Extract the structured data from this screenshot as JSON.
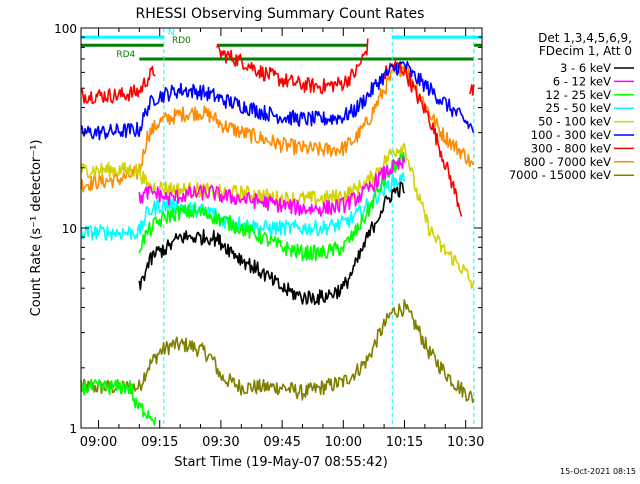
{
  "chart_data": {
    "type": "line",
    "title": "RHESSI Observing Summary Count Rates",
    "xlabel": "Start Time (19-May-07 08:55:42)",
    "ylabel": "Count Rate (s⁻¹ detector⁻¹)",
    "yscale": "log",
    "ylim": [
      1,
      100
    ],
    "xlim": [
      "08:55:42",
      "10:34:00"
    ],
    "grid": false,
    "legend_position": "right",
    "footer": "15-Oct-2021 08:15",
    "y_ticks": [
      {
        "value": 1,
        "label": "1"
      },
      {
        "value": 10,
        "label": "10"
      },
      {
        "value": 100,
        "label": "100"
      }
    ],
    "x_ticks": [
      "09:00",
      "09:15",
      "09:30",
      "09:45",
      "10:00",
      "10:15",
      "10:30"
    ],
    "legend": {
      "header": [
        "Det 1,3,4,5,6,9,",
        "FDecim 1, Att 0"
      ],
      "entries": [
        {
          "label": "3 - 6 keV",
          "color": "#000000"
        },
        {
          "label": "6 - 12 keV",
          "color": "#ff00ff"
        },
        {
          "label": "12 - 25 keV",
          "color": "#00ff00"
        },
        {
          "label": "25 - 50 keV",
          "color": "#00ffff"
        },
        {
          "label": "50 - 100 keV",
          "color": "#d2d200"
        },
        {
          "label": "100 - 300 keV",
          "color": "#0000ff"
        },
        {
          "label": "300 - 800 keV",
          "color": "#ff0000"
        },
        {
          "label": "800 - 7000 keV",
          "color": "#ff8c00"
        },
        {
          "label": "7000 - 15000 keV",
          "color": "#808000"
        }
      ]
    },
    "flags": [
      {
        "label": "N",
        "color": "#00ffff",
        "start": "08:55:42",
        "end": "09:16:00",
        "level": 90,
        "label_at": "09:17:00"
      },
      {
        "label": "N",
        "color": "#00ffff",
        "start": "10:12:00",
        "end": "10:34:00",
        "level": 90
      },
      {
        "label": "RD0",
        "color": "#008000",
        "start": "08:55:42",
        "end": "09:16:00",
        "level": 82,
        "label_at": "09:18:00"
      },
      {
        "label": "RD0",
        "color": "#008000",
        "start": "09:29:00",
        "end": "10:06:00",
        "level": 82
      },
      {
        "label": "RD0",
        "color": "#008000",
        "start": "10:32:00",
        "end": "10:34:00",
        "level": 82
      },
      {
        "label": "RD4",
        "color": "#008000",
        "start": "09:10:00",
        "end": "10:32:00",
        "level": 70,
        "label_at": "09:09:00"
      }
    ],
    "vlines": [
      {
        "color": "#00ffff",
        "time": "08:55:42"
      },
      {
        "color": "#00ffff",
        "time": "09:16:00"
      },
      {
        "color": "#00ffff",
        "time": "10:12:00"
      },
      {
        "color": "#00ffff",
        "time": "10:32:00"
      }
    ],
    "series": [
      {
        "name": "3 - 6 keV",
        "color": "#000000",
        "segments": [
          {
            "x": [
              "09:10",
              "09:12",
              "09:14",
              "09:17",
              "09:20",
              "09:25",
              "09:28",
              "09:30",
              "09:35",
              "09:40",
              "09:45",
              "09:50",
              "09:55",
              "10:00",
              "10:03",
              "10:06",
              "10:09",
              "10:12",
              "10:15"
            ],
            "y": [
              5.0,
              6.5,
              7.5,
              8.0,
              9.0,
              9.0,
              9.0,
              8.5,
              7.0,
              6.0,
              5.0,
              4.5,
              4.5,
              5.0,
              6.5,
              9.0,
              12.0,
              15.0,
              16.0
            ]
          }
        ]
      },
      {
        "name": "6 - 12 keV",
        "color": "#ff00ff",
        "segments": [
          {
            "x": [
              "09:10",
              "09:12",
              "09:14",
              "09:17",
              "09:20",
              "09:25",
              "09:28",
              "09:30",
              "09:35",
              "09:40",
              "09:45",
              "09:50",
              "09:55",
              "10:00",
              "10:03",
              "10:06",
              "10:09",
              "10:12",
              "10:15"
            ],
            "y": [
              14.0,
              15.0,
              15.0,
              14.0,
              14.5,
              15.0,
              15.0,
              14.5,
              14.0,
              13.5,
              13.0,
              12.5,
              12.5,
              13.0,
              14.0,
              15.5,
              18.0,
              20.0,
              21.0
            ]
          }
        ]
      },
      {
        "name": "12 - 25 keV",
        "color": "#00ff00",
        "segments": [
          {
            "x": [
              "09:10",
              "09:12",
              "09:14",
              "09:17",
              "09:20",
              "09:25",
              "09:28",
              "09:30",
              "09:35",
              "09:40",
              "09:45",
              "09:50",
              "09:55",
              "10:00",
              "10:03",
              "10:06",
              "10:09",
              "10:12",
              "10:15"
            ],
            "y": [
              8.0,
              9.5,
              10.5,
              11.5,
              12.0,
              12.0,
              11.5,
              11.0,
              10.0,
              9.0,
              8.0,
              7.5,
              7.5,
              8.0,
              9.5,
              12.0,
              16.0,
              20.0,
              22.0
            ]
          },
          {
            "x": [
              "08:55:42",
              "09:08",
              "09:09",
              "09:12",
              "09:14"
            ],
            "y": [
              1.6,
              1.6,
              1.3,
              1.2,
              1.1
            ]
          }
        ]
      },
      {
        "name": "25 - 50 keV",
        "color": "#00ffff",
        "segments": [
          {
            "x": [
              "08:55:42",
              "09:00",
              "09:05",
              "09:10",
              "09:12",
              "09:15",
              "09:18",
              "09:22",
              "09:28",
              "09:30",
              "09:35",
              "09:40",
              "09:45",
              "09:50",
              "09:55",
              "10:00",
              "10:03",
              "10:06",
              "10:09",
              "10:12",
              "10:15"
            ],
            "y": [
              9.5,
              9.5,
              9.5,
              9.5,
              12.0,
              13.0,
              13.0,
              12.5,
              12.0,
              11.0,
              10.5,
              10.0,
              10.0,
              10.0,
              10.0,
              10.5,
              11.5,
              13.0,
              15.0,
              17.0,
              17.5
            ]
          }
        ]
      },
      {
        "name": "50 - 100 keV",
        "color": "#d2d200",
        "segments": [
          {
            "x": [
              "08:55:42",
              "09:00",
              "09:05",
              "09:10",
              "09:12",
              "09:15",
              "09:20",
              "09:25",
              "09:30",
              "09:35",
              "09:40",
              "09:45",
              "09:50",
              "09:55",
              "10:00",
              "10:03",
              "10:06",
              "10:09",
              "10:12",
              "10:15",
              "10:18",
              "10:21",
              "10:24",
              "10:27",
              "10:30",
              "10:32"
            ],
            "y": [
              19.5,
              19.5,
              19.5,
              19.5,
              16.0,
              16.0,
              15.5,
              15.5,
              15.0,
              15.0,
              14.5,
              14.0,
              14.0,
              14.0,
              14.5,
              15.5,
              17.0,
              20.0,
              24.0,
              26.0,
              15.0,
              10.0,
              8.0,
              7.0,
              6.0,
              5.0
            ]
          }
        ]
      },
      {
        "name": "100 - 300 keV",
        "color": "#0000ff",
        "segments": [
          {
            "x": [
              "08:55:42",
              "09:00",
              "09:05",
              "09:10",
              "09:12",
              "09:14",
              "09:17",
              "09:20",
              "09:25",
              "09:28",
              "09:30",
              "09:35",
              "09:40",
              "09:45",
              "09:50",
              "09:55",
              "10:00",
              "10:03",
              "10:06",
              "10:09",
              "10:12",
              "10:15",
              "10:17",
              "10:20",
              "10:25",
              "10:30",
              "10:32"
            ],
            "y": [
              30.0,
              30.0,
              30.5,
              31.0,
              40.0,
              45.0,
              47.0,
              49.0,
              48.0,
              46.0,
              44.0,
              41.0,
              38.0,
              36.0,
              35.0,
              35.0,
              36.0,
              39.0,
              46.0,
              55.0,
              62.0,
              66.0,
              58.0,
              52.0,
              42.0,
              34.0,
              31.0
            ]
          }
        ]
      },
      {
        "name": "300 - 800 keV",
        "color": "#ff0000",
        "segments": [
          {
            "x": [
              "08:55:42",
              "09:00",
              "09:05",
              "09:10",
              "09:12",
              "09:14"
            ],
            "y": [
              46.0,
              46.0,
              46.0,
              48.0,
              56.0,
              62.0
            ]
          },
          {
            "x": [
              "09:29",
              "09:32",
              "09:36",
              "09:40",
              "09:45",
              "09:50",
              "09:55",
              "10:00",
              "10:03",
              "10:05",
              "10:06"
            ],
            "y": [
              76.0,
              72.0,
              67.0,
              60.0,
              55.0,
              52.0,
              51.0,
              53.0,
              60.0,
              72.0,
              82.0
            ]
          },
          {
            "x": [
              "10:10",
              "10:12",
              "10:15",
              "10:18",
              "10:21",
              "10:24",
              "10:27",
              "10:29"
            ],
            "y": [
              58.0,
              65.0,
              62.0,
              46.0,
              36.0,
              24.0,
              16.0,
              12.0
            ]
          },
          {
            "x": [
              "10:31",
              "10:32"
            ],
            "y": [
              48.0,
              48.0
            ]
          }
        ]
      },
      {
        "name": "800 - 7000 keV",
        "color": "#ff8c00",
        "segments": [
          {
            "x": [
              "08:55:42",
              "09:00",
              "09:05",
              "09:10",
              "09:12",
              "09:15",
              "09:20",
              "09:25",
              "09:28",
              "09:30",
              "09:35",
              "09:40",
              "09:45",
              "09:50",
              "09:55",
              "10:00",
              "10:03",
              "10:06",
              "10:09",
              "10:12",
              "10:15",
              "10:18",
              "10:21",
              "10:24",
              "10:27",
              "10:30",
              "10:32"
            ],
            "y": [
              16.5,
              17.0,
              17.5,
              19.0,
              29.0,
              34.0,
              37.0,
              38.0,
              36.0,
              33.0,
              30.0,
              28.0,
              26.0,
              25.0,
              24.5,
              25.0,
              28.0,
              34.0,
              45.0,
              58.0,
              65.0,
              50.0,
              38.0,
              30.0,
              26.0,
              23.0,
              20.0
            ]
          }
        ]
      },
      {
        "name": "7000 - 15000 keV",
        "color": "#808000",
        "segments": [
          {
            "x": [
              "08:55:42",
              "09:05",
              "09:10",
              "09:12",
              "09:15",
              "09:18",
              "09:22",
              "09:26",
              "09:28",
              "09:30",
              "09:35",
              "09:40",
              "09:45",
              "09:50",
              "09:55",
              "10:00",
              "10:03",
              "10:06",
              "10:09",
              "10:12",
              "10:15",
              "10:18",
              "10:21",
              "10:24",
              "10:27",
              "10:30",
              "10:32"
            ],
            "y": [
              1.6,
              1.6,
              1.6,
              2.0,
              2.4,
              2.6,
              2.6,
              2.4,
              2.2,
              1.8,
              1.6,
              1.6,
              1.6,
              1.5,
              1.6,
              1.7,
              1.9,
              2.2,
              3.0,
              3.8,
              4.0,
              3.2,
              2.4,
              2.0,
              1.7,
              1.5,
              1.4
            ]
          }
        ]
      }
    ]
  }
}
